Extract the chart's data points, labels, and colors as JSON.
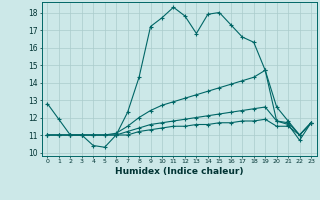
{
  "xlabel": "Humidex (Indice chaleur)",
  "background_color": "#cce8e8",
  "grid_color": "#aacccc",
  "line_color": "#006666",
  "xlim": [
    -0.5,
    23.5
  ],
  "ylim": [
    9.8,
    18.6
  ],
  "yticks": [
    10,
    11,
    12,
    13,
    14,
    15,
    16,
    17,
    18
  ],
  "xticks": [
    0,
    1,
    2,
    3,
    4,
    5,
    6,
    7,
    8,
    9,
    10,
    11,
    12,
    13,
    14,
    15,
    16,
    17,
    18,
    19,
    20,
    21,
    22,
    23
  ],
  "series": [
    {
      "x": [
        0,
        1,
        2,
        3,
        4,
        5,
        6,
        7,
        8,
        9,
        10,
        11,
        12,
        13,
        14,
        15,
        16,
        17,
        18,
        19,
        20,
        21,
        22,
        23
      ],
      "y": [
        12.8,
        11.9,
        11.0,
        11.0,
        10.4,
        10.3,
        11.0,
        12.3,
        14.3,
        17.2,
        17.7,
        18.3,
        17.8,
        16.8,
        17.9,
        18.0,
        17.3,
        16.6,
        16.3,
        14.7,
        11.8,
        11.6,
        10.7,
        11.7
      ]
    },
    {
      "x": [
        0,
        1,
        2,
        3,
        4,
        5,
        6,
        7,
        8,
        9,
        10,
        11,
        12,
        13,
        14,
        15,
        16,
        17,
        18,
        19,
        20,
        21,
        22,
        23
      ],
      "y": [
        11.0,
        11.0,
        11.0,
        11.0,
        11.0,
        11.0,
        11.1,
        11.5,
        12.0,
        12.4,
        12.7,
        12.9,
        13.1,
        13.3,
        13.5,
        13.7,
        13.9,
        14.1,
        14.3,
        14.7,
        12.6,
        11.8,
        11.0,
        11.7
      ]
    },
    {
      "x": [
        0,
        1,
        2,
        3,
        4,
        5,
        6,
        7,
        8,
        9,
        10,
        11,
        12,
        13,
        14,
        15,
        16,
        17,
        18,
        19,
        20,
        21,
        22,
        23
      ],
      "y": [
        11.0,
        11.0,
        11.0,
        11.0,
        11.0,
        11.0,
        11.0,
        11.2,
        11.4,
        11.6,
        11.7,
        11.8,
        11.9,
        12.0,
        12.1,
        12.2,
        12.3,
        12.4,
        12.5,
        12.6,
        11.8,
        11.7,
        11.0,
        11.7
      ]
    },
    {
      "x": [
        0,
        1,
        2,
        3,
        4,
        5,
        6,
        7,
        8,
        9,
        10,
        11,
        12,
        13,
        14,
        15,
        16,
        17,
        18,
        19,
        20,
        21,
        22,
        23
      ],
      "y": [
        11.0,
        11.0,
        11.0,
        11.0,
        11.0,
        11.0,
        11.0,
        11.0,
        11.2,
        11.3,
        11.4,
        11.5,
        11.5,
        11.6,
        11.6,
        11.7,
        11.7,
        11.8,
        11.8,
        11.9,
        11.5,
        11.5,
        11.0,
        11.7
      ]
    }
  ]
}
